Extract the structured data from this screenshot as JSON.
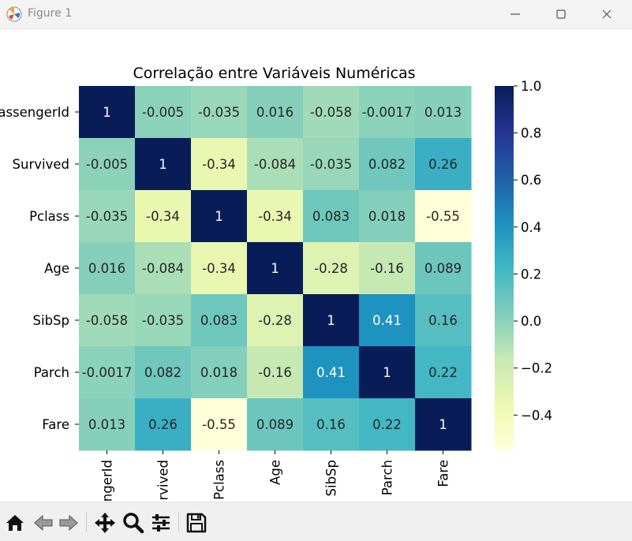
{
  "window": {
    "title": "Figure 1",
    "icons": {
      "app": "matplotlib-icon",
      "minimize": "minimize-icon",
      "maximize": "maximize-icon",
      "close": "close-icon"
    }
  },
  "toolbar": {
    "tools": [
      {
        "name": "home-icon",
        "action": "home"
      },
      {
        "name": "back-arrow-icon",
        "action": "back"
      },
      {
        "name": "forward-arrow-icon",
        "action": "forward"
      },
      {
        "name": "pan-icon",
        "action": "pan"
      },
      {
        "name": "zoom-icon",
        "action": "zoom"
      },
      {
        "name": "configure-subplots-icon",
        "action": "configure"
      },
      {
        "name": "save-icon",
        "action": "save"
      }
    ]
  },
  "chart_data": {
    "type": "heatmap",
    "title": "Correlação entre Variáveis Numéricas",
    "labels": [
      "PassengerId",
      "Survived",
      "Pclass",
      "Age",
      "SibSp",
      "Parch",
      "Fare"
    ],
    "display_values": [
      [
        "1",
        "-0.005",
        "-0.035",
        "0.016",
        "-0.058",
        "-0.0017",
        "0.013"
      ],
      [
        "-0.005",
        "1",
        "-0.34",
        "-0.084",
        "-0.035",
        "0.082",
        "0.26"
      ],
      [
        "-0.035",
        "-0.34",
        "1",
        "-0.34",
        "0.083",
        "0.018",
        "-0.55"
      ],
      [
        "0.016",
        "-0.084",
        "-0.34",
        "1",
        "-0.28",
        "-0.16",
        "0.089"
      ],
      [
        "-0.058",
        "-0.035",
        "0.083",
        "-0.28",
        "1",
        "0.41",
        "0.16"
      ],
      [
        "-0.0017",
        "0.082",
        "0.018",
        "-0.16",
        "0.41",
        "1",
        "0.22"
      ],
      [
        "0.013",
        "0.26",
        "-0.55",
        "0.089",
        "0.16",
        "0.22",
        "1"
      ]
    ],
    "colormap": "YlGnBu",
    "vmin": -0.55,
    "vmax": 1.0,
    "colorbar_ticks": [
      1.0,
      0.8,
      0.6,
      0.4,
      0.2,
      0.0,
      -0.2,
      -0.4
    ],
    "colorbar_tick_labels": [
      "1.0",
      "0.8",
      "0.6",
      "0.4",
      "0.2",
      "0.0",
      "−0.2",
      "−0.4"
    ]
  }
}
